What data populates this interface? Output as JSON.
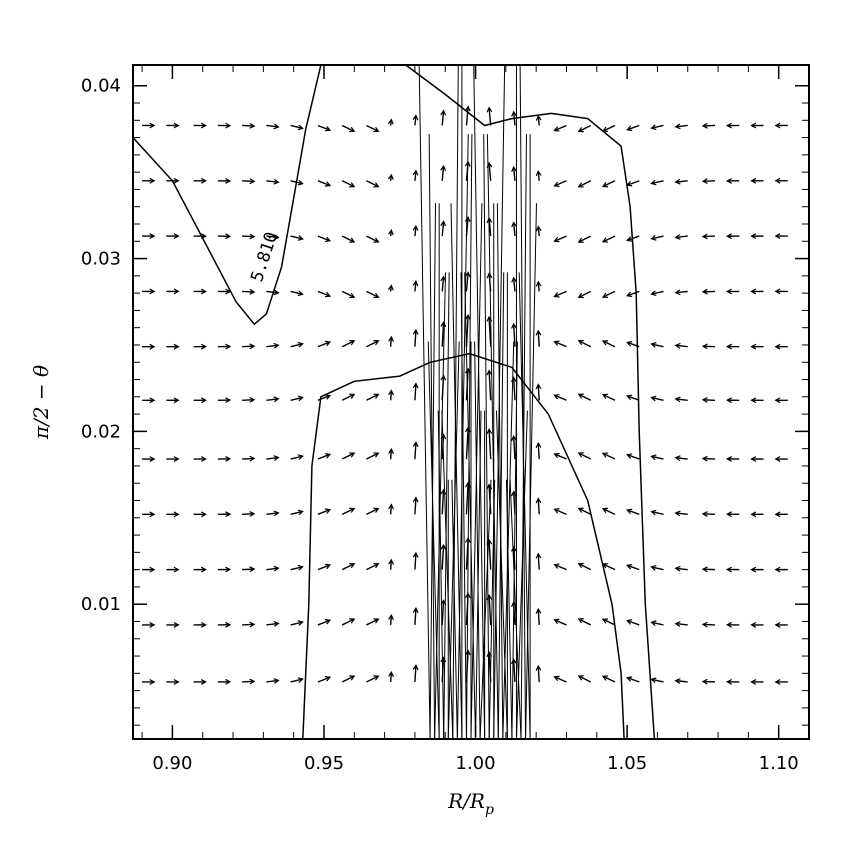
{
  "chart_data": {
    "type": "vector-field-contour",
    "title": "",
    "xlabel": "R/R",
    "xlabel_sub": "p",
    "ylabel": "π/2 − θ",
    "xlim": [
      0.887,
      1.11
    ],
    "ylim": [
      0.0022,
      0.0412
    ],
    "x_ticks": [
      "0.90",
      "0.95",
      "1.00",
      "1.05",
      "1.10"
    ],
    "x_tick_values": [
      0.9,
      0.95,
      1.0,
      1.05,
      1.1
    ],
    "y_ticks": [
      "0.01",
      "0.02",
      "0.03",
      "0.04"
    ],
    "y_tick_values": [
      0.01,
      0.02,
      0.03,
      0.04
    ],
    "vector_rows_y": [
      0.0055,
      0.0088,
      0.012,
      0.0152,
      0.0184,
      0.0218,
      0.0249,
      0.0281,
      0.0313,
      0.0345,
      0.0377
    ],
    "vector_cols_x": [
      0.89,
      0.898,
      0.907,
      0.915,
      0.923,
      0.931,
      0.939,
      0.948,
      0.956,
      0.964,
      0.972,
      0.98,
      0.989,
      0.997,
      1.005,
      1.013,
      1.021,
      1.03,
      1.038,
      1.046,
      1.054,
      1.062,
      1.07,
      1.079,
      1.087,
      1.095,
      1.103
    ],
    "contours": [
      {
        "label": "5.810",
        "points": [
          [
            0.887,
            0.037
          ],
          [
            0.9,
            0.0345
          ],
          [
            0.912,
            0.0305
          ],
          [
            0.921,
            0.0275
          ],
          [
            0.927,
            0.0262
          ],
          [
            0.931,
            0.0268
          ],
          [
            0.936,
            0.0295
          ],
          [
            0.94,
            0.0335
          ],
          [
            0.944,
            0.0375
          ],
          [
            0.949,
            0.0412
          ]
        ]
      },
      {
        "label": "",
        "points": [
          [
            0.977,
            0.0412
          ],
          [
            0.99,
            0.0395
          ],
          [
            1.003,
            0.0377
          ],
          [
            1.012,
            0.0381
          ],
          [
            1.025,
            0.0384
          ],
          [
            1.037,
            0.0381
          ],
          [
            1.048,
            0.0365
          ],
          [
            1.051,
            0.033
          ],
          [
            1.053,
            0.028
          ],
          [
            1.054,
            0.02
          ],
          [
            1.056,
            0.01
          ],
          [
            1.059,
            0.0022
          ]
        ]
      },
      {
        "label": "",
        "points": [
          [
            0.943,
            0.0022
          ],
          [
            0.945,
            0.01
          ],
          [
            0.946,
            0.018
          ],
          [
            0.949,
            0.022
          ],
          [
            0.96,
            0.0229
          ],
          [
            0.975,
            0.0232
          ],
          [
            0.985,
            0.024
          ],
          [
            0.998,
            0.0245
          ],
          [
            1.012,
            0.0237
          ],
          [
            1.024,
            0.021
          ],
          [
            1.037,
            0.016
          ],
          [
            1.045,
            0.01
          ],
          [
            1.048,
            0.006
          ],
          [
            1.049,
            0.0022
          ]
        ]
      }
    ]
  }
}
